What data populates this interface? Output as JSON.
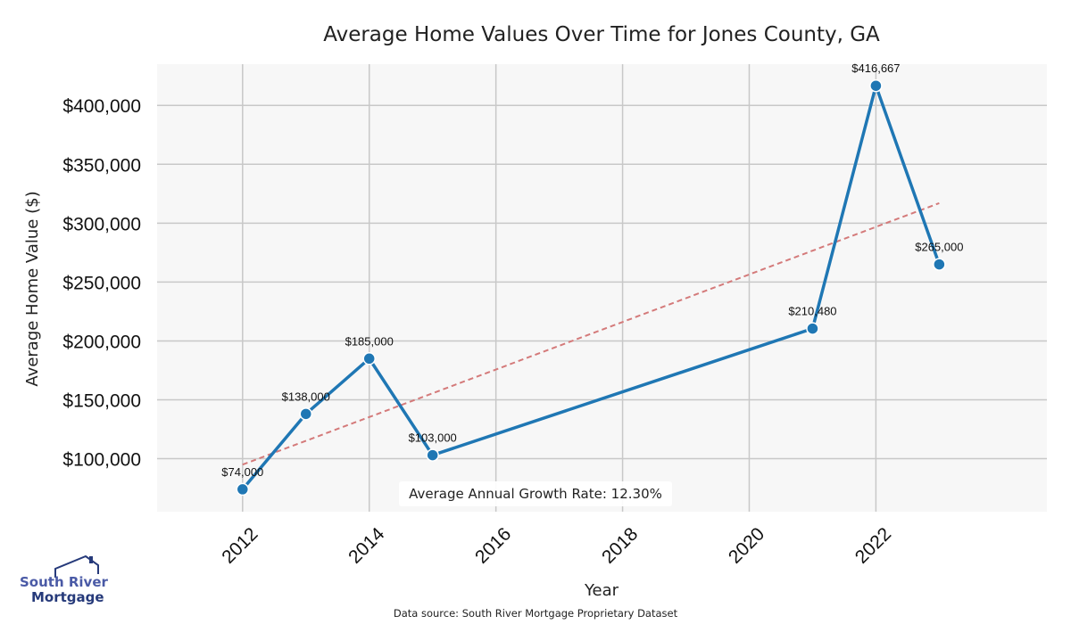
{
  "chart_data": {
    "type": "line",
    "title": "Average Home Values Over Time for Jones County, GA",
    "xlabel": "Year",
    "ylabel": "Average Home Value ($)",
    "x": [
      2012,
      2013,
      2014,
      2015,
      2021,
      2022,
      2023
    ],
    "values": [
      74000,
      138000,
      185000,
      103000,
      210480,
      416667,
      265000
    ],
    "data_labels": [
      "$74,000",
      "$138,000",
      "$185,000",
      "$103,000",
      "$210,480",
      "$416,667",
      "$265,000"
    ],
    "xlim": [
      2010.65,
      2024.7
    ],
    "ylim": [
      55000,
      435000
    ],
    "xticks": [
      2012,
      2014,
      2016,
      2018,
      2020,
      2022
    ],
    "xtick_labels": [
      "2012",
      "2014",
      "2016",
      "2018",
      "2020",
      "2022"
    ],
    "yticks": [
      100000,
      150000,
      200000,
      250000,
      300000,
      350000,
      400000
    ],
    "ytick_labels": [
      "$100,000",
      "$150,000",
      "$200,000",
      "$250,000",
      "$300,000",
      "$350,000",
      "$400,000"
    ],
    "trendline": {
      "start": [
        2012,
        95000
      ],
      "end": [
        2023,
        317000
      ]
    },
    "annotation": "Average Annual Growth Rate: 12.30%",
    "grid": true,
    "line_color": "#1f77b4",
    "trend_color": "#d47a7a",
    "background_color": "#f7f7f7"
  },
  "footer": {
    "source": "Data source: South River Mortgage Proprietary Dataset"
  },
  "logo": {
    "line1": "South River",
    "line2": "Mortgage"
  }
}
